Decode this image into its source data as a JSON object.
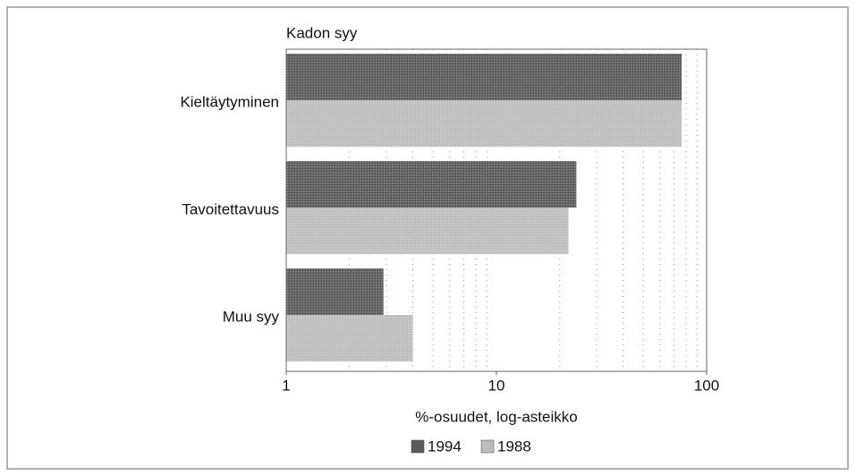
{
  "chart_data": {
    "type": "barh",
    "title": "Kadon syy",
    "xlabel": "%-osuudet, log-asteikko",
    "categories": [
      "Kieltäytyminen",
      "Tavoitettavuus",
      "Muu syy"
    ],
    "series": [
      {
        "name": "1994",
        "color": "#5a5a5a",
        "values": [
          76,
          24,
          2.9
        ]
      },
      {
        "name": "1988",
        "color": "#bdbdbd",
        "values": [
          76,
          22,
          4
        ]
      }
    ],
    "xlim": [
      1,
      100
    ],
    "xticks": [
      1,
      10,
      100
    ],
    "minor_xticks": [
      2,
      3,
      4,
      5,
      6,
      7,
      8,
      9,
      20,
      30,
      40,
      50,
      60,
      70,
      80,
      90
    ],
    "xscale": "log",
    "grid": true,
    "legend": "bottom"
  }
}
